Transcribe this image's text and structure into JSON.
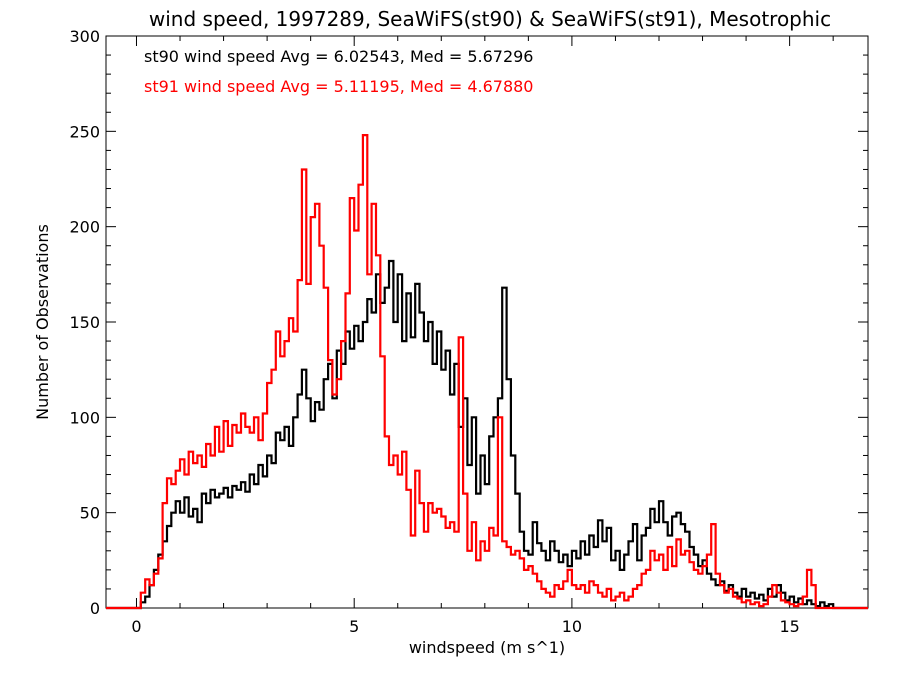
{
  "chart_data": {
    "type": "line",
    "title": "wind speed, 1997289, SeaWiFS(st90) & SeaWiFS(st91), Mesotrophic",
    "xlabel": "windspeed (m s^1)",
    "ylabel": "Number of Observations",
    "xlim": [
      -0.7,
      16.8
    ],
    "ylim": [
      0,
      300
    ],
    "xticks": [
      0,
      5,
      10,
      15
    ],
    "yticks": [
      0,
      50,
      100,
      150,
      200,
      250,
      300
    ],
    "grid": false,
    "legend": "top-left",
    "annotations": [
      {
        "text": "st90 wind speed Avg = 6.02543, Med = 5.67296",
        "color": "#000000"
      },
      {
        "text": "st91 wind speed Avg = 5.11195, Med = 4.67880",
        "color": "#ff0000"
      }
    ],
    "series": [
      {
        "color": "#000000",
        "points": [
          [
            -0.7,
            0
          ],
          [
            0.0,
            0
          ],
          [
            0.1,
            3
          ],
          [
            0.2,
            6
          ],
          [
            0.3,
            12
          ],
          [
            0.4,
            20
          ],
          [
            0.5,
            28
          ],
          [
            0.6,
            35
          ],
          [
            0.7,
            43
          ],
          [
            0.8,
            50
          ],
          [
            0.9,
            56
          ],
          [
            1.0,
            50
          ],
          [
            1.1,
            58
          ],
          [
            1.2,
            48
          ],
          [
            1.3,
            52
          ],
          [
            1.4,
            45
          ],
          [
            1.5,
            60
          ],
          [
            1.6,
            55
          ],
          [
            1.7,
            62
          ],
          [
            1.8,
            58
          ],
          [
            1.9,
            60
          ],
          [
            2.0,
            63
          ],
          [
            2.1,
            58
          ],
          [
            2.2,
            64
          ],
          [
            2.3,
            62
          ],
          [
            2.4,
            66
          ],
          [
            2.5,
            61
          ],
          [
            2.6,
            70
          ],
          [
            2.7,
            65
          ],
          [
            2.8,
            75
          ],
          [
            2.9,
            69
          ],
          [
            3.0,
            80
          ],
          [
            3.1,
            76
          ],
          [
            3.2,
            92
          ],
          [
            3.3,
            88
          ],
          [
            3.4,
            95
          ],
          [
            3.5,
            85
          ],
          [
            3.6,
            100
          ],
          [
            3.7,
            112
          ],
          [
            3.8,
            125
          ],
          [
            3.9,
            110
          ],
          [
            4.0,
            98
          ],
          [
            4.1,
            108
          ],
          [
            4.2,
            104
          ],
          [
            4.3,
            120
          ],
          [
            4.4,
            128
          ],
          [
            4.5,
            110
          ],
          [
            4.6,
            135
          ],
          [
            4.7,
            128
          ],
          [
            4.8,
            145
          ],
          [
            4.9,
            136
          ],
          [
            5.0,
            148
          ],
          [
            5.1,
            140
          ],
          [
            5.2,
            150
          ],
          [
            5.3,
            162
          ],
          [
            5.4,
            155
          ],
          [
            5.5,
            175
          ],
          [
            5.6,
            160
          ],
          [
            5.7,
            168
          ],
          [
            5.8,
            182
          ],
          [
            5.9,
            150
          ],
          [
            6.0,
            175
          ],
          [
            6.1,
            140
          ],
          [
            6.2,
            165
          ],
          [
            6.3,
            142
          ],
          [
            6.4,
            170
          ],
          [
            6.5,
            155
          ],
          [
            6.6,
            140
          ],
          [
            6.7,
            150
          ],
          [
            6.8,
            128
          ],
          [
            6.9,
            145
          ],
          [
            7.0,
            125
          ],
          [
            7.1,
            135
          ],
          [
            7.2,
            112
          ],
          [
            7.3,
            128
          ],
          [
            7.4,
            95
          ],
          [
            7.5,
            110
          ],
          [
            7.6,
            75
          ],
          [
            7.7,
            100
          ],
          [
            7.8,
            60
          ],
          [
            7.9,
            80
          ],
          [
            8.0,
            65
          ],
          [
            8.1,
            90
          ],
          [
            8.2,
            100
          ],
          [
            8.3,
            110
          ],
          [
            8.4,
            168
          ],
          [
            8.5,
            120
          ],
          [
            8.6,
            80
          ],
          [
            8.7,
            60
          ],
          [
            8.8,
            40
          ],
          [
            8.9,
            30
          ],
          [
            9.0,
            28
          ],
          [
            9.1,
            45
          ],
          [
            9.2,
            34
          ],
          [
            9.3,
            30
          ],
          [
            9.4,
            25
          ],
          [
            9.5,
            35
          ],
          [
            9.6,
            30
          ],
          [
            9.7,
            24
          ],
          [
            9.8,
            28
          ],
          [
            9.9,
            22
          ],
          [
            10.0,
            30
          ],
          [
            10.1,
            26
          ],
          [
            10.2,
            35
          ],
          [
            10.3,
            28
          ],
          [
            10.4,
            38
          ],
          [
            10.5,
            32
          ],
          [
            10.6,
            46
          ],
          [
            10.7,
            35
          ],
          [
            10.8,
            42
          ],
          [
            10.9,
            25
          ],
          [
            11.0,
            30
          ],
          [
            11.1,
            20
          ],
          [
            11.2,
            28
          ],
          [
            11.3,
            35
          ],
          [
            11.4,
            44
          ],
          [
            11.5,
            25
          ],
          [
            11.6,
            38
          ],
          [
            11.7,
            42
          ],
          [
            11.8,
            52
          ],
          [
            11.9,
            45
          ],
          [
            12.0,
            56
          ],
          [
            12.1,
            45
          ],
          [
            12.2,
            38
          ],
          [
            12.3,
            48
          ],
          [
            12.4,
            50
          ],
          [
            12.5,
            44
          ],
          [
            12.6,
            40
          ],
          [
            12.7,
            32
          ],
          [
            12.8,
            28
          ],
          [
            12.9,
            22
          ],
          [
            13.0,
            25
          ],
          [
            13.1,
            18
          ],
          [
            13.2,
            15
          ],
          [
            13.3,
            12
          ],
          [
            13.4,
            14
          ],
          [
            13.5,
            9
          ],
          [
            13.6,
            12
          ],
          [
            13.7,
            8
          ],
          [
            13.8,
            6
          ],
          [
            13.9,
            10
          ],
          [
            14.0,
            6
          ],
          [
            14.1,
            8
          ],
          [
            14.2,
            5
          ],
          [
            14.3,
            7
          ],
          [
            14.4,
            4
          ],
          [
            14.5,
            10
          ],
          [
            14.6,
            6
          ],
          [
            14.7,
            12
          ],
          [
            14.8,
            8
          ],
          [
            14.9,
            4
          ],
          [
            15.0,
            6
          ],
          [
            15.1,
            3
          ],
          [
            15.2,
            5
          ],
          [
            15.3,
            2
          ],
          [
            15.4,
            4
          ],
          [
            15.5,
            2
          ],
          [
            15.6,
            1
          ],
          [
            15.7,
            3
          ],
          [
            15.8,
            1
          ],
          [
            15.9,
            2
          ],
          [
            16.0,
            0
          ],
          [
            16.8,
            0
          ]
        ]
      },
      {
        "color": "#ff0000",
        "points": [
          [
            -0.7,
            0
          ],
          [
            0.0,
            0
          ],
          [
            0.1,
            8
          ],
          [
            0.2,
            15
          ],
          [
            0.3,
            12
          ],
          [
            0.4,
            18
          ],
          [
            0.5,
            26
          ],
          [
            0.6,
            55
          ],
          [
            0.7,
            68
          ],
          [
            0.8,
            65
          ],
          [
            0.9,
            72
          ],
          [
            1.0,
            78
          ],
          [
            1.1,
            70
          ],
          [
            1.2,
            82
          ],
          [
            1.3,
            76
          ],
          [
            1.4,
            80
          ],
          [
            1.5,
            74
          ],
          [
            1.6,
            86
          ],
          [
            1.7,
            80
          ],
          [
            1.8,
            95
          ],
          [
            1.9,
            82
          ],
          [
            2.0,
            98
          ],
          [
            2.1,
            85
          ],
          [
            2.2,
            96
          ],
          [
            2.3,
            92
          ],
          [
            2.4,
            102
          ],
          [
            2.5,
            95
          ],
          [
            2.6,
            92
          ],
          [
            2.7,
            100
          ],
          [
            2.8,
            88
          ],
          [
            2.9,
            102
          ],
          [
            3.0,
            118
          ],
          [
            3.1,
            125
          ],
          [
            3.2,
            145
          ],
          [
            3.3,
            132
          ],
          [
            3.4,
            140
          ],
          [
            3.5,
            152
          ],
          [
            3.6,
            145
          ],
          [
            3.7,
            172
          ],
          [
            3.8,
            230
          ],
          [
            3.9,
            170
          ],
          [
            4.0,
            205
          ],
          [
            4.1,
            212
          ],
          [
            4.2,
            190
          ],
          [
            4.3,
            168
          ],
          [
            4.4,
            130
          ],
          [
            4.5,
            112
          ],
          [
            4.6,
            120
          ],
          [
            4.7,
            140
          ],
          [
            4.8,
            165
          ],
          [
            4.9,
            215
          ],
          [
            5.0,
            198
          ],
          [
            5.1,
            222
          ],
          [
            5.2,
            248
          ],
          [
            5.3,
            175
          ],
          [
            5.4,
            212
          ],
          [
            5.5,
            185
          ],
          [
            5.6,
            132
          ],
          [
            5.7,
            90
          ],
          [
            5.8,
            75
          ],
          [
            5.9,
            80
          ],
          [
            6.0,
            70
          ],
          [
            6.1,
            82
          ],
          [
            6.2,
            62
          ],
          [
            6.3,
            38
          ],
          [
            6.4,
            72
          ],
          [
            6.5,
            55
          ],
          [
            6.6,
            40
          ],
          [
            6.7,
            55
          ],
          [
            6.8,
            50
          ],
          [
            6.9,
            52
          ],
          [
            7.0,
            48
          ],
          [
            7.1,
            42
          ],
          [
            7.2,
            45
          ],
          [
            7.3,
            40
          ],
          [
            7.4,
            142
          ],
          [
            7.5,
            60
          ],
          [
            7.6,
            30
          ],
          [
            7.7,
            45
          ],
          [
            7.8,
            25
          ],
          [
            7.9,
            35
          ],
          [
            8.0,
            30
          ],
          [
            8.1,
            42
          ],
          [
            8.2,
            38
          ],
          [
            8.3,
            100
          ],
          [
            8.4,
            35
          ],
          [
            8.5,
            32
          ],
          [
            8.6,
            28
          ],
          [
            8.7,
            30
          ],
          [
            8.8,
            26
          ],
          [
            8.9,
            20
          ],
          [
            9.0,
            22
          ],
          [
            9.1,
            18
          ],
          [
            9.2,
            14
          ],
          [
            9.3,
            10
          ],
          [
            9.4,
            8
          ],
          [
            9.5,
            6
          ],
          [
            9.6,
            12
          ],
          [
            9.7,
            10
          ],
          [
            9.8,
            14
          ],
          [
            9.9,
            20
          ],
          [
            10.0,
            12
          ],
          [
            10.1,
            10
          ],
          [
            10.2,
            12
          ],
          [
            10.3,
            8
          ],
          [
            10.4,
            14
          ],
          [
            10.5,
            12
          ],
          [
            10.6,
            8
          ],
          [
            10.7,
            6
          ],
          [
            10.8,
            10
          ],
          [
            10.9,
            4
          ],
          [
            11.0,
            6
          ],
          [
            11.1,
            8
          ],
          [
            11.2,
            4
          ],
          [
            11.3,
            6
          ],
          [
            11.4,
            10
          ],
          [
            11.5,
            12
          ],
          [
            11.6,
            18
          ],
          [
            11.7,
            20
          ],
          [
            11.8,
            30
          ],
          [
            11.9,
            25
          ],
          [
            12.0,
            28
          ],
          [
            12.1,
            20
          ],
          [
            12.2,
            32
          ],
          [
            12.3,
            22
          ],
          [
            12.4,
            36
          ],
          [
            12.5,
            28
          ],
          [
            12.6,
            30
          ],
          [
            12.7,
            24
          ],
          [
            12.8,
            20
          ],
          [
            12.9,
            18
          ],
          [
            13.0,
            22
          ],
          [
            13.1,
            28
          ],
          [
            13.2,
            44
          ],
          [
            13.3,
            18
          ],
          [
            13.4,
            12
          ],
          [
            13.5,
            8
          ],
          [
            13.6,
            10
          ],
          [
            13.7,
            6
          ],
          [
            13.8,
            5
          ],
          [
            13.9,
            3
          ],
          [
            14.0,
            4
          ],
          [
            14.1,
            2
          ],
          [
            14.2,
            3
          ],
          [
            14.3,
            1
          ],
          [
            14.4,
            2
          ],
          [
            14.5,
            6
          ],
          [
            14.6,
            12
          ],
          [
            14.7,
            8
          ],
          [
            14.8,
            4
          ],
          [
            14.9,
            3
          ],
          [
            15.0,
            2
          ],
          [
            15.1,
            1
          ],
          [
            15.2,
            2
          ],
          [
            15.3,
            6
          ],
          [
            15.4,
            20
          ],
          [
            15.5,
            12
          ],
          [
            15.6,
            0
          ],
          [
            16.8,
            0
          ]
        ]
      }
    ]
  }
}
